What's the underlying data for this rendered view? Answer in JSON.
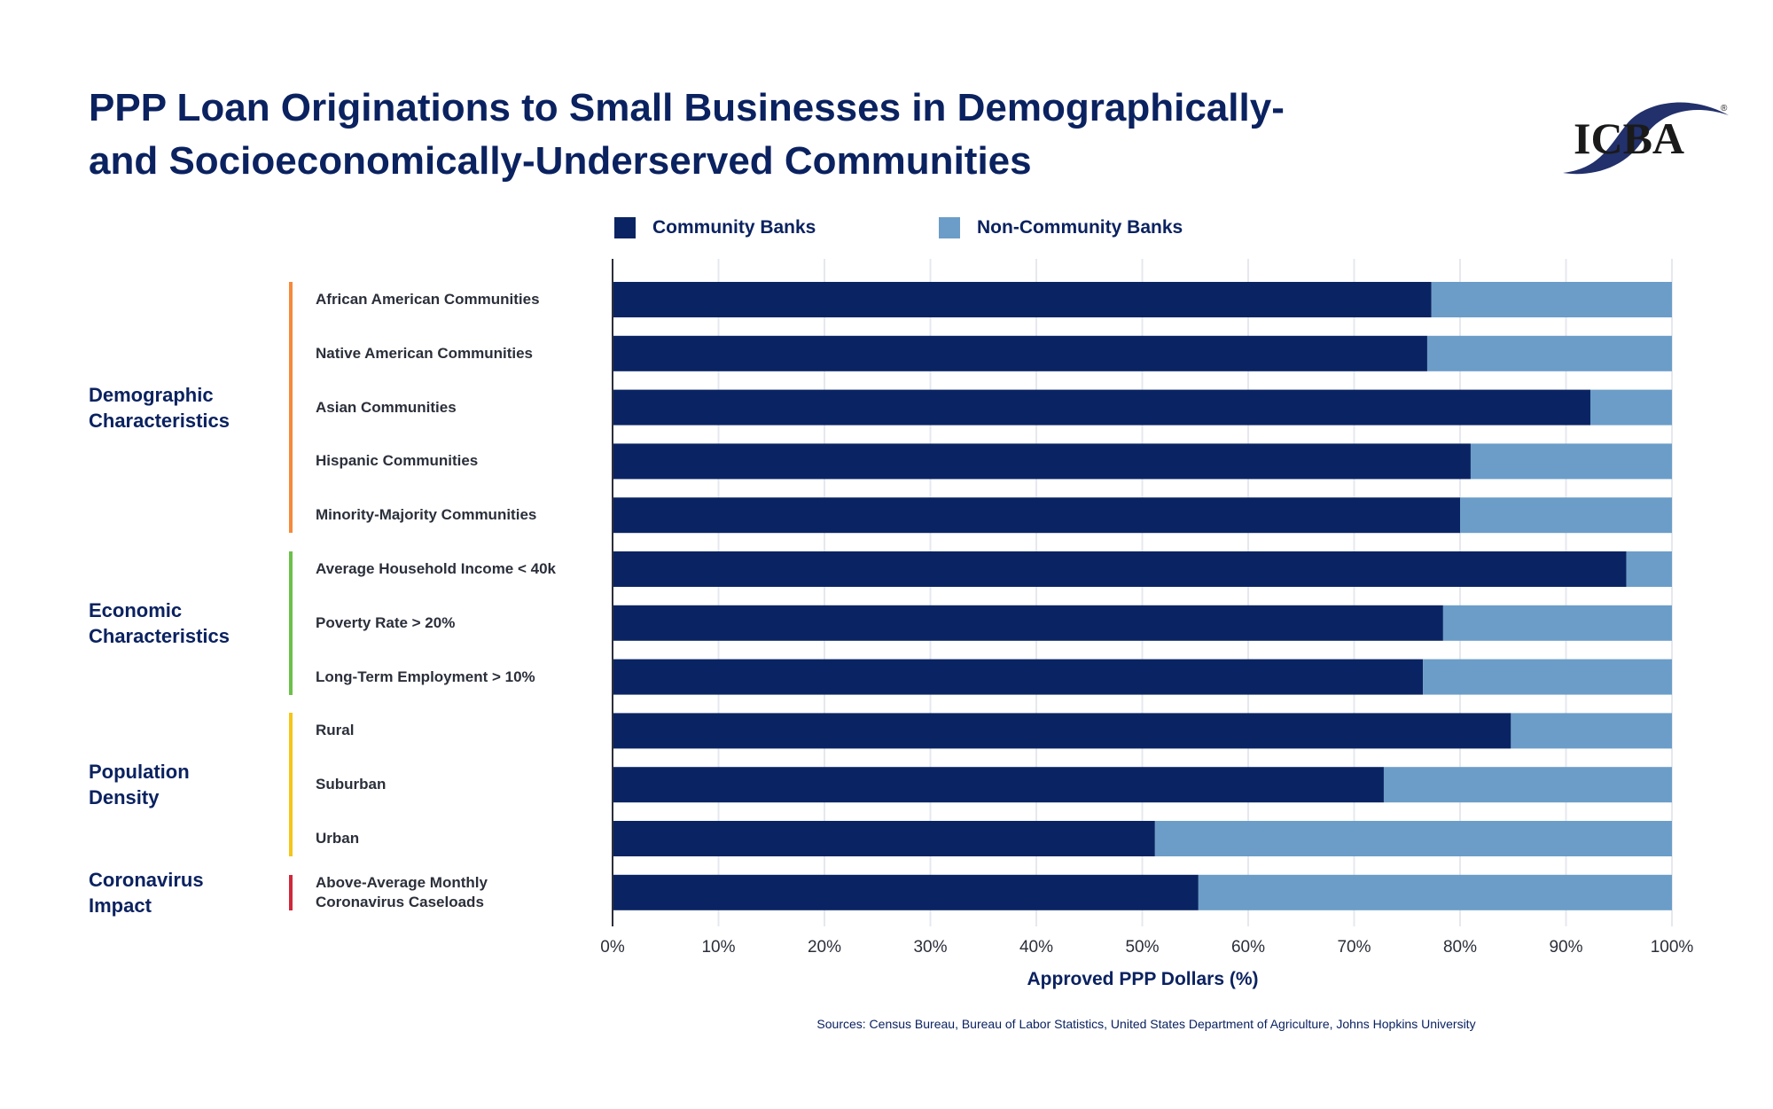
{
  "title_line1": "PPP Loan Originations to Small Businesses in Demographically-",
  "title_line2": "and Socioeconomically-Underserved Communities",
  "logo_text": "ICBA",
  "legend": [
    {
      "label": "Community Banks",
      "color": "#0a2463"
    },
    {
      "label": "Non-Community Banks",
      "color": "#6b9dc8"
    }
  ],
  "groups": [
    {
      "label_line1": "Demographic",
      "label_line2": "Characteristics",
      "color": "#f58a3a"
    },
    {
      "label_line1": "Economic",
      "label_line2": "Characteristics",
      "color": "#6cc04a"
    },
    {
      "label_line1": "Population",
      "label_line2": "Density",
      "color": "#f5c518"
    },
    {
      "label_line1": "Coronavirus",
      "label_line2": "Impact",
      "color": "#d0273a"
    }
  ],
  "chart_data": {
    "type": "bar",
    "orientation": "horizontal",
    "stacked": true,
    "categories": [
      "African American Communities",
      "Native American Communities",
      "Asian Communities",
      "Hispanic Communities",
      "Minority-Majority Communities",
      "Average Household Income < 40k",
      "Poverty Rate > 20%",
      "Long-Term Employment > 10%",
      "Rural",
      "Suburban",
      "Urban",
      "Above-Average Monthly Coronavirus Caseloads"
    ],
    "category_groups": [
      0,
      0,
      0,
      0,
      0,
      1,
      1,
      1,
      2,
      2,
      2,
      3
    ],
    "series": [
      {
        "name": "Community Banks",
        "values": [
          77.3,
          76.9,
          92.3,
          81.0,
          80.0,
          95.7,
          78.4,
          76.5,
          84.8,
          72.8,
          51.2,
          55.3
        ]
      },
      {
        "name": "Non-Community Banks",
        "values": [
          22.7,
          23.1,
          7.7,
          19.0,
          20.0,
          4.3,
          21.6,
          23.5,
          15.2,
          27.2,
          48.8,
          44.7
        ]
      }
    ],
    "xlabel": "Approved PPP Dollars (%)",
    "xlim": [
      0,
      100
    ],
    "xticks": [
      "0%",
      "10%",
      "20%",
      "30%",
      "40%",
      "50%",
      "60%",
      "70%",
      "80%",
      "90%",
      "100%"
    ],
    "grid": true,
    "legend_position": "top"
  },
  "source": "Sources: Census Bureau, Bureau of Labor Statistics, United States Department of Agriculture, Johns Hopkins University"
}
